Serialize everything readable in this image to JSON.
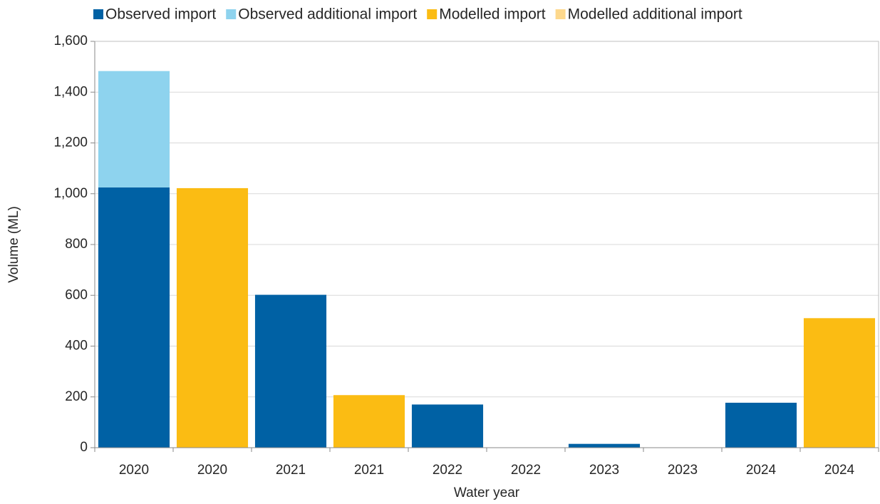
{
  "chart_data": {
    "type": "bar",
    "stacked": true,
    "x_label": "Water year",
    "y_label": "Volume (ML)",
    "categories": [
      "2020",
      "2020",
      "2021",
      "2021",
      "2022",
      "2022",
      "2023",
      "2023",
      "2024",
      "2024"
    ],
    "series": [
      {
        "name": "Observed import",
        "color": "#0061a4",
        "values": [
          1025,
          null,
          602,
          null,
          170,
          null,
          15,
          null,
          177,
          null
        ]
      },
      {
        "name": "Observed additional import",
        "color": "#8ed3ee",
        "values": [
          458,
          null,
          null,
          null,
          null,
          null,
          null,
          null,
          null,
          null
        ]
      },
      {
        "name": "Modelled import",
        "color": "#fbbc13",
        "values": [
          null,
          1022,
          null,
          207,
          null,
          0,
          null,
          0,
          null,
          510
        ]
      },
      {
        "name": "Modelled additional import",
        "color": "#fdd88c",
        "values": [
          null,
          null,
          null,
          null,
          null,
          null,
          null,
          null,
          null,
          null
        ]
      }
    ],
    "ylim": [
      0,
      1600
    ],
    "yticks": [
      0,
      200,
      400,
      600,
      800,
      {
        "value": 1000,
        "label": "1,000"
      },
      {
        "value": 1200,
        "label": "1,200"
      },
      {
        "value": 1400,
        "label": "1,400"
      },
      {
        "value": 1600,
        "label": "1,600"
      }
    ],
    "grid": true,
    "legend": "top"
  }
}
